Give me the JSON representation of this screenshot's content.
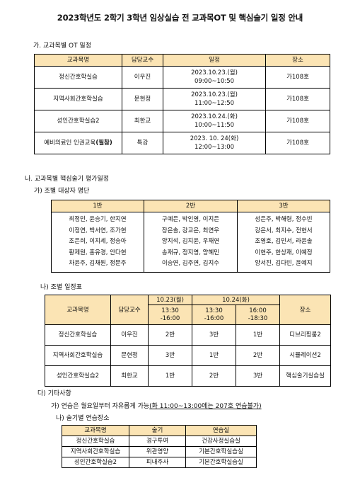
{
  "title": "2023학년도 2학기 3학년 임상실습 전 교과목OT 및 핵심술기 일정 안내",
  "section_a": {
    "heading": "가. 교과목별 OT 일정",
    "headers": [
      "교과목명",
      "담당교수",
      "일정",
      "장소"
    ],
    "rows": [
      {
        "course": "정신간호학실습",
        "prof": "이우진",
        "date": "2023.10.23.(월)",
        "time": "09:00~10:50",
        "room": "가108호"
      },
      {
        "course": "지역사회간호학실습",
        "prof": "문현정",
        "date": "2023.10.23.(월)",
        "time": "11:00~12:50",
        "room": "가108호"
      },
      {
        "course": "성인간호학실습2",
        "prof": "최한교",
        "date": "2023.10.24.(화)",
        "time": "10:00~11:50",
        "room": "가108호"
      },
      {
        "course": "예비의료인 인권교육",
        "course_bold": "(필참)",
        "prof": "특강",
        "date": "2023. 10. 24(화)",
        "time": "12:00~13:00",
        "room": "가108호"
      }
    ]
  },
  "section_b": {
    "heading": "나. 교과목별 핵심술기 평가일정",
    "sub1": "가) 조별 대상자 명단",
    "groups": [
      {
        "label": "1반",
        "names": [
          "최정민, 윤승기, 한지연",
          "이정연, 박서연, 조가현",
          "조은희, 이지세, 정승아",
          "황제원, 홍유경, 안다현",
          "차윤주, 김채원, 정문주"
        ]
      },
      {
        "label": "2반",
        "names": [
          "구예은, 박인영, 이지은",
          "장은솔, 강교은, 최연우",
          "양지석, 김지윤, 우재연",
          "송재규, 정지영, 양혜민",
          "이승연, 김주연, 김지수"
        ]
      },
      {
        "label": "3반",
        "names": [
          "성은주, 박해령, 정수빈",
          "강은서, 최지수, 전현서",
          "조영호, 김민서, 라윤솔",
          "이현주, 한상재, 이예정",
          "양서진, 김다빈, 윤예지"
        ]
      }
    ],
    "sub2": "나) 조별 일정표",
    "sched_headers": {
      "course": "교과목명",
      "prof": "담당교수",
      "day1": "10.23(월)",
      "day2": "10.24(화)",
      "t1": "13:30",
      "t1b": "-16:00",
      "t2": "13:30",
      "t2b": "-16:00",
      "t3": "16:00",
      "t3b": "-18:30",
      "room": "장소"
    },
    "sched_rows": [
      {
        "course": "정신간호학실습",
        "prof": "이우진",
        "c1": "2반",
        "c2": "3반",
        "c3": "1반",
        "room": "디브리핑룸2"
      },
      {
        "course": "지역사회간호학실습",
        "prof": "문현정",
        "c1": "3반",
        "c2": "1반",
        "c3": "2반",
        "room": "시뮬레이션2"
      },
      {
        "course": "성인간호학실습2",
        "prof": "최한교",
        "c1": "1반",
        "c2": "2반",
        "c3": "3반",
        "room": "핵심술기실습실"
      }
    ]
  },
  "section_c": {
    "heading": "다) 기타사항",
    "note1_prefix": "가) 연습은 월요일부터 자유롭게 가능",
    "note1_underline": "(화 11:00~13:00에는 207호 연습불가)",
    "note2": "나) 술기별 연습장소",
    "headers": [
      "교과목명",
      "술기",
      "연습실"
    ],
    "rows": [
      {
        "course": "정신간호학실습",
        "skill": "경구투여",
        "room": "건강사정실습실"
      },
      {
        "course": "지역사회간호학실습",
        "skill": "위관영양",
        "room": "기본간호학실습실"
      },
      {
        "course": "성인간호학실습2",
        "skill": "피내주사",
        "room": "기본간호학실습실"
      }
    ]
  }
}
